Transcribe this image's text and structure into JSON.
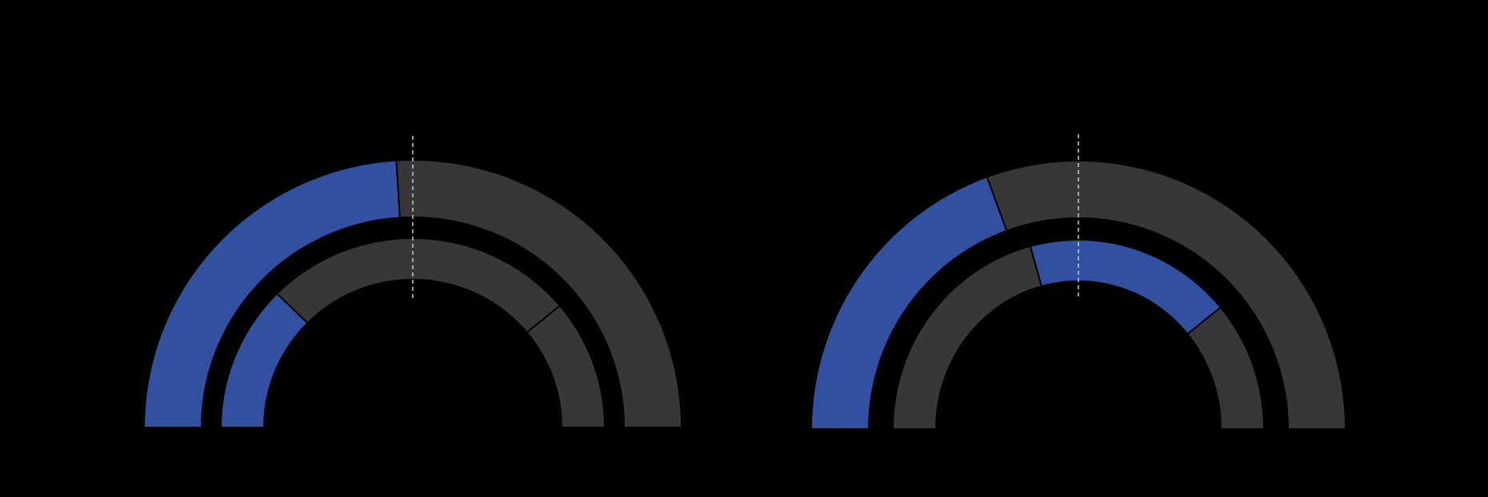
{
  "colors": {
    "background": "#000000",
    "highlight": "#31509f",
    "track": "#373737",
    "separator": "#000000",
    "reference_line": "#cccccc"
  },
  "chart_data": [
    {
      "type": "gauge",
      "title": "",
      "rings": [
        {
          "name": "",
          "scale": [
            0,
            180
          ],
          "segments": [
            {
              "start": 0,
              "end": 86.5,
              "color": "highlight"
            },
            {
              "start": 86.5,
              "end": 180,
              "color": "track"
            }
          ]
        },
        {
          "name": "",
          "scale": [
            0,
            180
          ],
          "segments": [
            {
              "start": 0,
              "end": 45,
              "color": "highlight"
            },
            {
              "start": 45,
              "end": 140,
              "color": "track"
            },
            {
              "start": 140,
              "end": 180,
              "color": "track"
            }
          ]
        }
      ],
      "reference_value": 90
    },
    {
      "type": "gauge",
      "title": "",
      "rings": [
        {
          "name": "",
          "scale": [
            0,
            180
          ],
          "segments": [
            {
              "start": 0,
              "end": 70,
              "color": "highlight"
            },
            {
              "start": 70,
              "end": 180,
              "color": "track"
            }
          ]
        },
        {
          "name": "",
          "scale": [
            0,
            180
          ],
          "segments": [
            {
              "start": 0,
              "end": 75,
              "color": "track"
            },
            {
              "start": 75,
              "end": 140,
              "color": "highlight"
            },
            {
              "start": 140,
              "end": 180,
              "color": "track"
            }
          ]
        }
      ],
      "reference_value": 90
    }
  ]
}
